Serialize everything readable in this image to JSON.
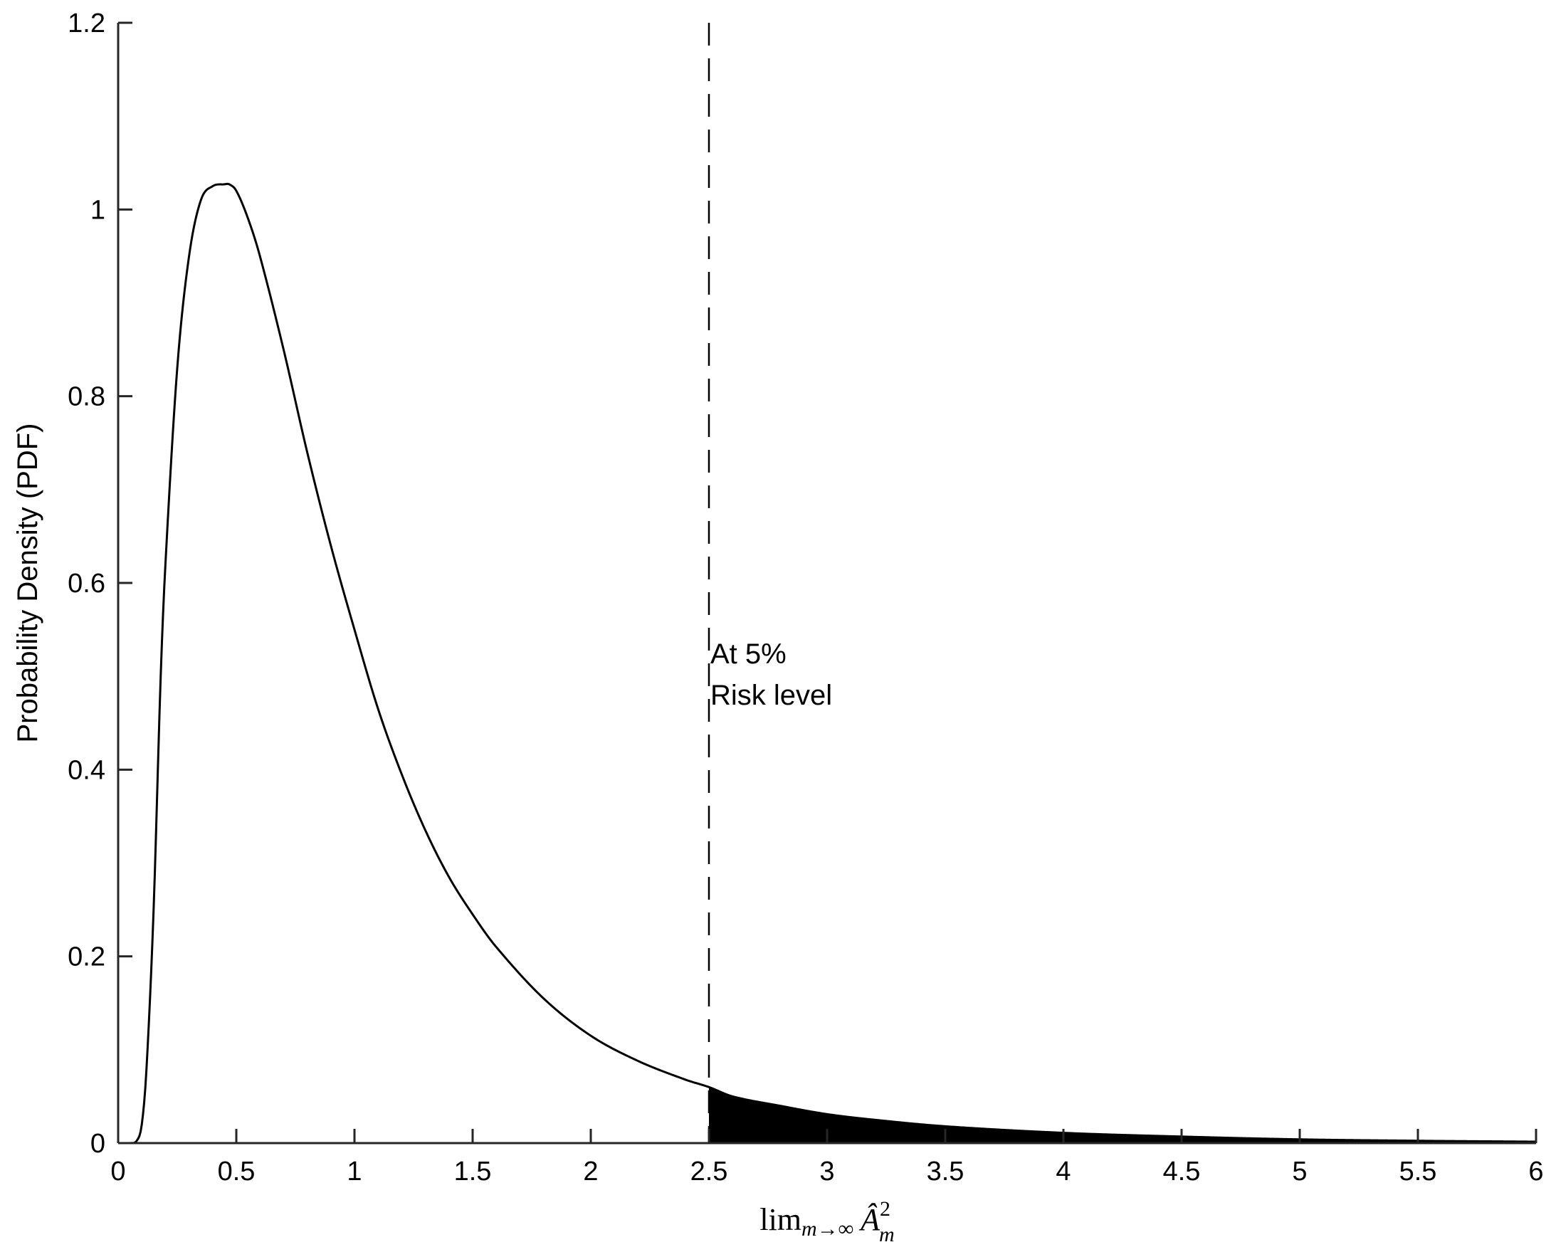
{
  "chart_data": {
    "type": "line",
    "title": "",
    "xlabel": "lim",
    "xlabel_sub": "m→∞",
    "xlabel_var": "Â",
    "xlabel_var_sub": "m",
    "xlabel_var_sup": "2",
    "ylabel": "Probability Density (PDF)",
    "xlim": [
      0,
      6
    ],
    "ylim": [
      0,
      1.2
    ],
    "x_ticks": [
      0,
      0.5,
      1,
      1.5,
      2,
      2.5,
      3,
      3.5,
      4,
      4.5,
      5,
      5.5,
      6
    ],
    "x_tick_labels": [
      "0",
      "0.5",
      "1",
      "1.5",
      "2",
      "2.5",
      "3",
      "3.5",
      "4",
      "4.5",
      "5",
      "5.5",
      "6"
    ],
    "y_ticks": [
      0,
      0.2,
      0.4,
      0.6,
      0.8,
      1,
      1.2
    ],
    "y_tick_labels": [
      "0",
      "0.2",
      "0.4",
      "0.6",
      "0.8",
      "1",
      "1.2"
    ],
    "grid": false,
    "series": [
      {
        "x": [
          0,
          0.05,
          0.08,
          0.1,
          0.12,
          0.15,
          0.18,
          0.2,
          0.25,
          0.3,
          0.35,
          0.4,
          0.45,
          0.47,
          0.5,
          0.55,
          0.6,
          0.7,
          0.8,
          0.9,
          1.0,
          1.1,
          1.2,
          1.3,
          1.4,
          1.5,
          1.6,
          1.8,
          2.0,
          2.2,
          2.4,
          2.5,
          2.6,
          2.8,
          3.0,
          3.2,
          3.5,
          4.0,
          4.5,
          5.0,
          5.5,
          6.0
        ],
        "y": [
          0,
          0,
          0.003,
          0.02,
          0.08,
          0.25,
          0.5,
          0.62,
          0.83,
          0.95,
          1.01,
          1.025,
          1.027,
          1.027,
          1.02,
          0.99,
          0.95,
          0.85,
          0.74,
          0.64,
          0.55,
          0.465,
          0.395,
          0.335,
          0.285,
          0.245,
          0.21,
          0.155,
          0.115,
          0.088,
          0.068,
          0.06,
          0.05,
          0.04,
          0.031,
          0.025,
          0.018,
          0.011,
          0.007,
          0.004,
          0.0025,
          0.0015
        ],
        "color": "#000000"
      }
    ],
    "shaded_region": {
      "x_from": 2.5,
      "x_to": 6,
      "color": "#000000"
    },
    "reference_line": {
      "x": 2.5,
      "style": "dashed",
      "color": "#000000"
    },
    "annotation": {
      "lines": [
        "At 5%",
        "Risk level"
      ],
      "x": 2.5,
      "y": 0.52
    }
  }
}
